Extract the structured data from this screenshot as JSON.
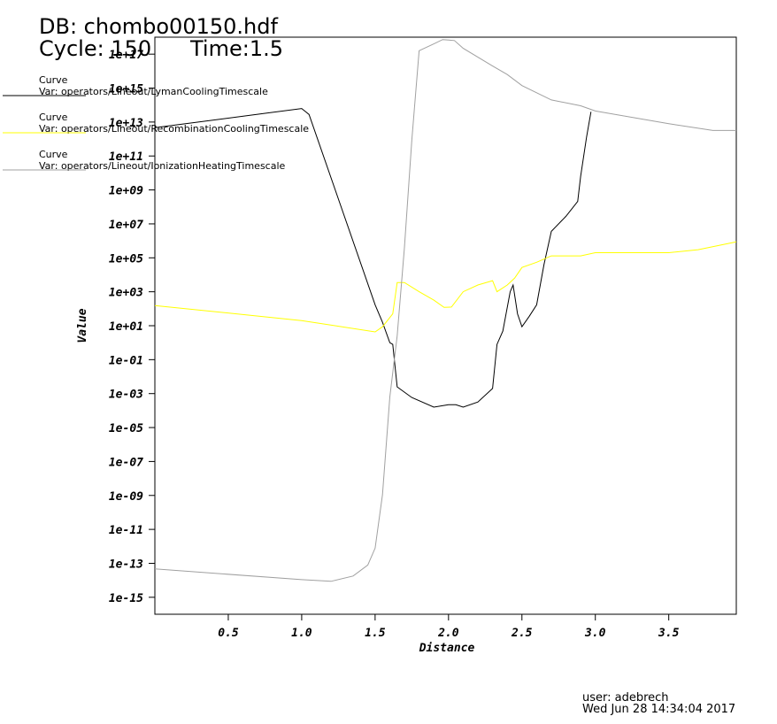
{
  "header": {
    "db": "DB: chombo00150.hdf",
    "cycle": "Cycle: 150",
    "time": "Time:1.5"
  },
  "footer": {
    "user": "user: adebrech",
    "date": "Wed Jun 28 14:34:04 2017"
  },
  "chart_data": {
    "type": "line",
    "xlabel": "Distance",
    "ylabel": "Value",
    "ylog": true,
    "xlim": [
      0,
      3.96
    ],
    "ylim": [
      1e-16,
      1e+18
    ],
    "xticks": [
      0.5,
      {
        "value": 1,
        "label": "1.0"
      },
      1.5,
      {
        "value": 2,
        "label": "2.0"
      },
      2.5,
      {
        "value": 3,
        "label": "3.0"
      },
      3.5
    ],
    "yticks": [
      {
        "value": 1e+17,
        "label": "1e+17"
      },
      {
        "value": 1000000000000000.0,
        "label": "1e+15"
      },
      {
        "value": 10000000000000.0,
        "label": "1e+13"
      },
      {
        "value": 100000000000.0,
        "label": "1e+11"
      },
      {
        "value": 1000000000.0,
        "label": "1e+09"
      },
      {
        "value": 10000000.0,
        "label": "1e+07"
      },
      {
        "value": 100000.0,
        "label": "1e+05"
      },
      {
        "value": 1000.0,
        "label": "1e+03"
      },
      {
        "value": 10,
        "label": "1e+01"
      },
      {
        "value": 0.1,
        "label": "1e-01"
      },
      {
        "value": 0.001,
        "label": "1e-03"
      },
      {
        "value": 1e-05,
        "label": "1e-05"
      },
      {
        "value": 1e-07,
        "label": "1e-07"
      },
      {
        "value": 1e-09,
        "label": "1e-09"
      },
      {
        "value": 1e-11,
        "label": "1e-11"
      },
      {
        "value": 1e-13,
        "label": "1e-13"
      },
      {
        "value": 1e-15,
        "label": "1e-15"
      }
    ],
    "series": [
      {
        "label": "Curve",
        "name": "Var: operators/Lineout/LymanCoolingTimescale",
        "color": "#000000",
        "x": [
          0,
          1.0,
          1.05,
          1.5,
          1.55,
          1.6,
          1.62,
          1.65,
          1.75,
          1.9,
          2.0,
          2.05,
          2.1,
          2.2,
          2.3,
          2.33,
          2.37,
          2.42,
          2.44,
          2.47,
          2.5,
          2.55,
          2.6,
          2.65,
          2.7,
          2.8,
          2.88,
          2.9,
          2.94,
          2.97
        ],
        "values": [
          4600000000000.0,
          63000000000000.0,
          28000000000000.0,
          170,
          16,
          1,
          0.79,
          0.0025,
          0.00059,
          0.00016,
          0.00022,
          0.00022,
          0.00016,
          0.00032,
          0.002,
          0.79,
          4.8,
          1000,
          2500,
          50,
          8.7,
          36,
          170,
          40000.0,
          3600000.0,
          28000000.0,
          210000000.0,
          6300000000.0,
          1300000000000.0,
          40000000000000.0
        ]
      },
      {
        "label": "Curve",
        "name": "Var: operators/Lineout/RecombinationCoolingTimescale",
        "color": "#ffff00",
        "x": [
          0,
          1.0,
          1.5,
          1.55,
          1.62,
          1.65,
          1.7,
          1.8,
          1.9,
          1.97,
          2.02,
          2.1,
          2.2,
          2.3,
          2.33,
          2.4,
          2.45,
          2.5,
          2.6,
          2.7,
          2.9,
          3.0,
          3.5,
          3.7,
          3.96
        ],
        "values": [
          155,
          20,
          4.3,
          8.7,
          50,
          3500,
          3500,
          1000,
          320,
          120,
          126,
          1000,
          2500,
          4500,
          1000,
          2500,
          6300,
          27000.0,
          55000.0,
          130000.0,
          130000.0,
          200000.0,
          200000.0,
          300000.0,
          870000.0
        ]
      },
      {
        "label": "Curve",
        "name": "Var: operators/Lineout/IonizationHeatingTimescale",
        "color": "#a0a0a0",
        "x": [
          0,
          1.0,
          1.2,
          1.35,
          1.45,
          1.5,
          1.55,
          1.6,
          1.65,
          1.7,
          1.75,
          1.8,
          1.9,
          1.96,
          2.04,
          2.1,
          2.3,
          2.4,
          2.5,
          2.7,
          2.9,
          3.0,
          3.5,
          3.8,
          3.96
        ],
        "values": [
          4.7e-14,
          1.1e-14,
          8.7e-15,
          1.8e-14,
          7.9e-14,
          7.9e-13,
          1.1e-09,
          0.00063,
          2.5,
          400000.0,
          790000000000.0,
          1.6e+17,
          4e+17,
          7.2e+17,
          6.3e+17,
          2.2e+17,
          2e+16,
          6300000000000000.0,
          1400000000000000.0,
          200000000000000.0,
          91000000000000.0,
          45000000000000.0,
          7900000000000.0,
          3200000000000.0,
          3200000000000.0
        ]
      }
    ]
  }
}
